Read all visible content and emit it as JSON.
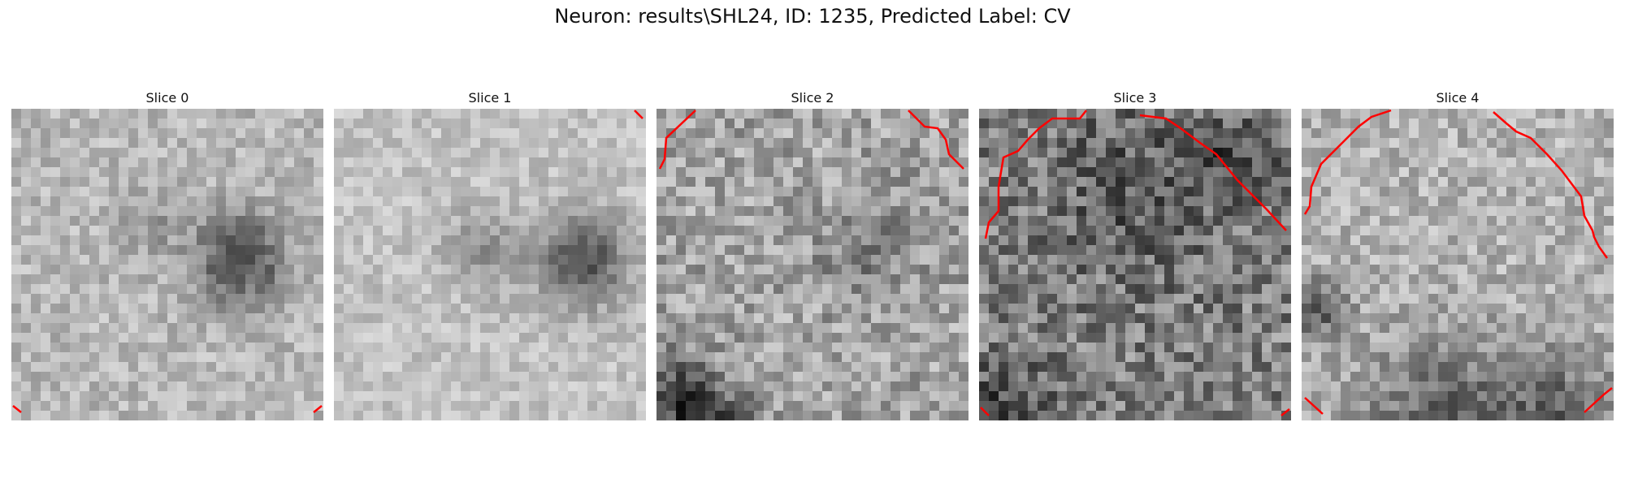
{
  "figure": {
    "title": "Neuron: results\\SHL24, ID: 1235, Predicted Label: CV"
  },
  "contour_color": "#ff0000",
  "panels": [
    {
      "title": "Slice 0",
      "base": 0.72,
      "texture": 0.12
    },
    {
      "title": "Slice 1",
      "base": 0.76,
      "texture": 0.1
    },
    {
      "title": "Slice 2",
      "base": 0.64,
      "texture": 0.18
    },
    {
      "title": "Slice 3",
      "base": 0.5,
      "texture": 0.22
    },
    {
      "title": "Slice 4",
      "base": 0.7,
      "texture": 0.15
    }
  ]
}
